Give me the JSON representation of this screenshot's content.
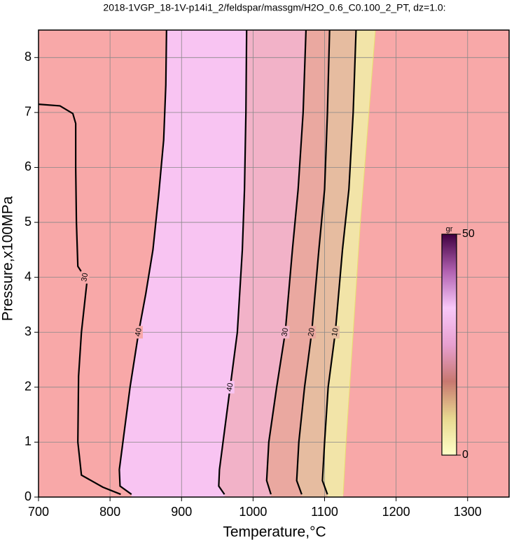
{
  "chart_data": {
    "type": "contour",
    "title": "2018-1VGP_18-1V-p14i1_2/feldspar/massgm/H2O_0.6_C0.100_2_PT, dz=1.0:",
    "x_label": "Temperature,°C",
    "y_label": "Pressure,x100MPa",
    "xlim": [
      700,
      1358
    ],
    "ylim": [
      0,
      8.5
    ],
    "xticks": [
      700,
      800,
      900,
      1000,
      1100,
      1200,
      1300
    ],
    "yticks": [
      0,
      1,
      2,
      3,
      4,
      5,
      6,
      7,
      8
    ],
    "grid": true,
    "background_color": "#f8a8a8",
    "contours": [
      {
        "level": 30,
        "color": "#000000",
        "band_color": "#f8a8a8",
        "x": [
          700,
          730,
          748,
          752,
          752,
          753,
          755,
          765,
          768,
          760,
          756,
          755,
          760,
          790,
          815
        ],
        "values": [
          7.15,
          7.12,
          6.98,
          6.8,
          6,
          5,
          4.2,
          4,
          3.95,
          3,
          2.2,
          1,
          0.4,
          0.18,
          0.05
        ]
      },
      {
        "level": 40,
        "color": "#000000",
        "band_color": "#f8a8a8",
        "x": [
          879,
          878,
          875,
          868,
          860,
          850,
          840,
          828,
          818,
          813,
          814,
          830
        ],
        "values": [
          8.5,
          7.5,
          6.5,
          5.5,
          4.5,
          3.7,
          3,
          2,
          1,
          0.5,
          0.2,
          0.05
        ]
      },
      {
        "level": 40,
        "color": "#000000",
        "band_color": "#f8c4f2",
        "x": [
          991,
          990,
          988,
          985,
          978,
          968,
          958,
          953,
          952,
          960
        ],
        "values": [
          8.5,
          7,
          5.6,
          4.5,
          3,
          2,
          1,
          0.5,
          0.2,
          0.05
        ]
      },
      {
        "level": 30,
        "color": "#000000",
        "band_color": "#f2b2c8",
        "x": [
          1074,
          1070,
          1063,
          1055,
          1045,
          1033,
          1022,
          1019,
          1025
        ],
        "values": [
          8.5,
          7,
          5.6,
          4.5,
          3,
          2,
          1,
          0.3,
          0.05
        ]
      },
      {
        "level": 20,
        "color": "#000000",
        "band_color": "#eaa8a0",
        "x": [
          1107,
          1104,
          1100,
          1092,
          1082,
          1072,
          1064,
          1061,
          1068
        ],
        "values": [
          8.5,
          7,
          5.6,
          4.5,
          3,
          2,
          1,
          0.3,
          0.05
        ]
      },
      {
        "level": 10,
        "color": "#000000",
        "band_color": "#e6bca0",
        "x": [
          1144,
          1140,
          1134,
          1125,
          1115,
          1105,
          1100,
          1097,
          1104
        ],
        "values": [
          8.5,
          7,
          5.6,
          4.5,
          3,
          2,
          1,
          0.3,
          0.05
        ]
      }
    ],
    "boundary": {
      "color": "#f2e4a8",
      "x": [
        1171,
        1162,
        1150,
        1140,
        1130,
        1126
      ],
      "values": [
        8.5,
        7,
        5,
        3,
        1,
        0.05
      ]
    },
    "colorbar": {
      "label": "gr",
      "lim": [
        0,
        50
      ],
      "ticks": [
        0,
        50
      ],
      "colors": [
        "#ffffc8",
        "#e8d890",
        "#c87870",
        "#e8a0d0",
        "#f8c8f8",
        "#b060b0",
        "#400040"
      ]
    }
  }
}
